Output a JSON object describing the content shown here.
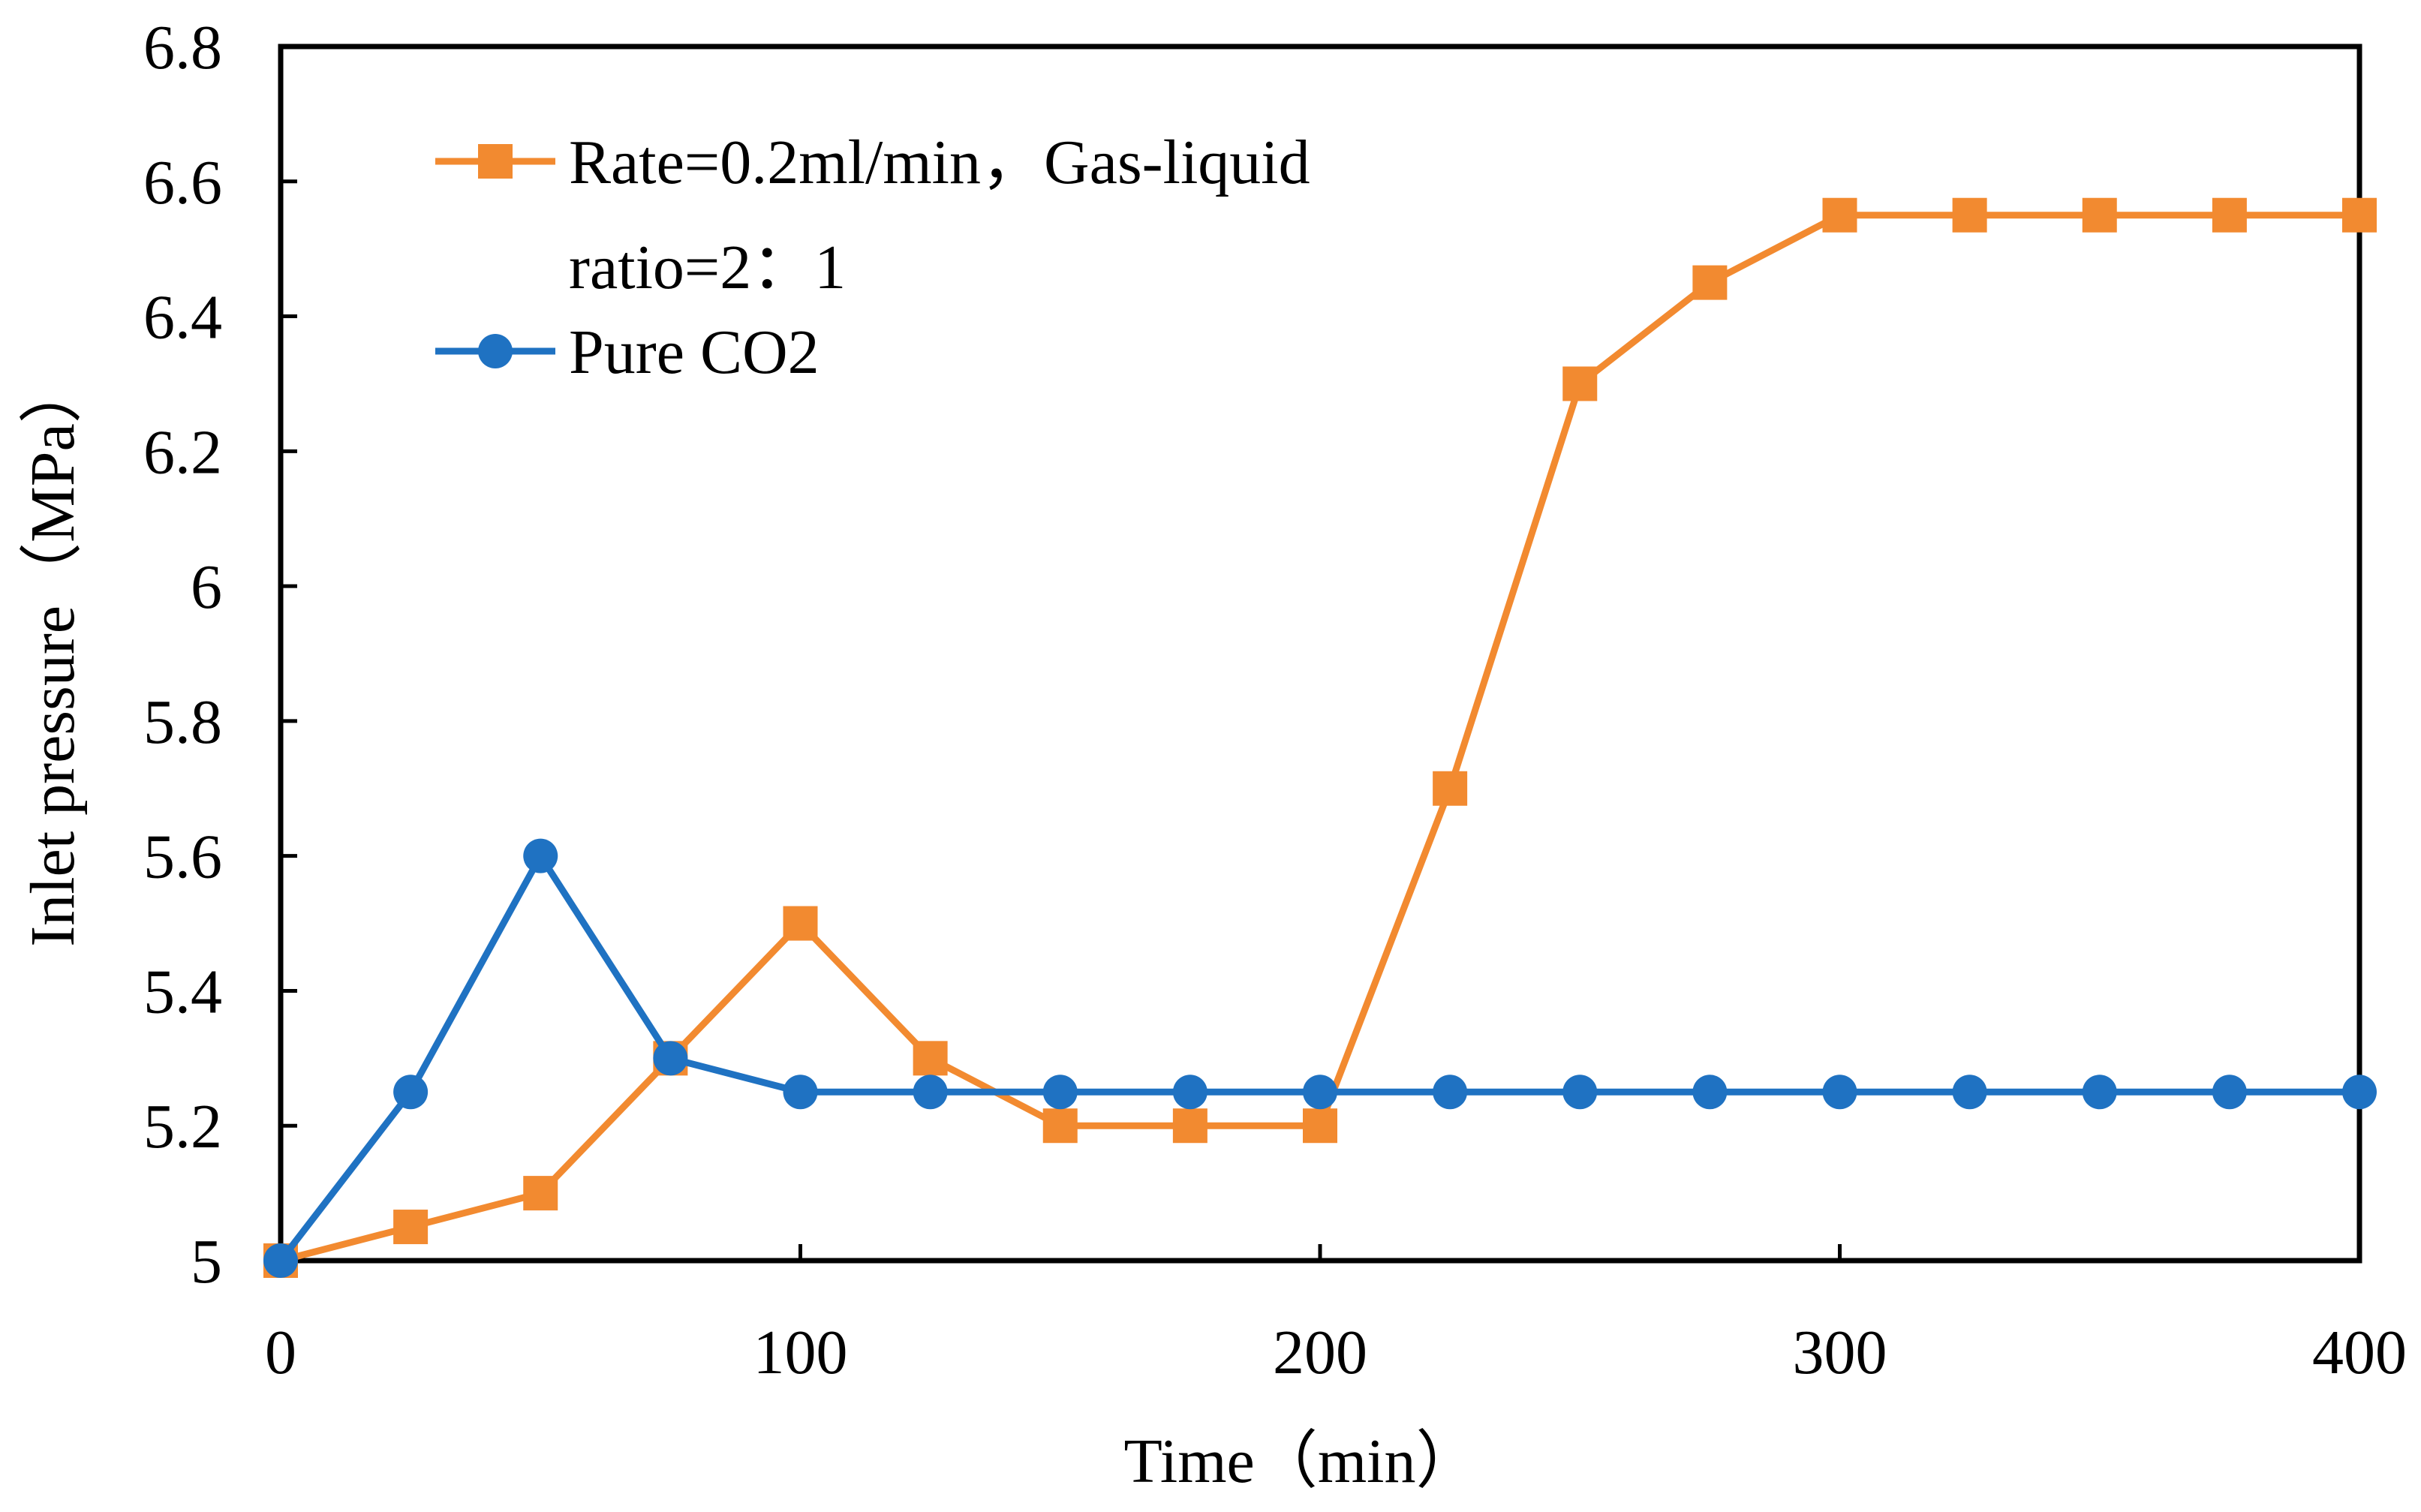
{
  "chart_data": {
    "type": "line",
    "title": "",
    "xlabel": "Time（min）",
    "ylabel": "Inlet pressure（MPa）",
    "xlim": [
      0,
      400
    ],
    "ylim": [
      5,
      6.8
    ],
    "x_ticks": [
      0,
      100,
      200,
      300,
      400
    ],
    "x_tick_labels": [
      "0",
      "100",
      "200",
      "300",
      "400"
    ],
    "y_ticks": [
      5,
      5.2,
      5.4,
      5.6,
      5.8,
      6,
      6.2,
      6.4,
      6.6,
      6.8
    ],
    "y_tick_labels": [
      "5",
      "5.2",
      "5.4",
      "5.6",
      "5.8",
      "6",
      "6.2",
      "6.4",
      "6.6",
      "6.8"
    ],
    "grid": false,
    "legend_position": "top-left",
    "series": [
      {
        "name": "Rate=0.2ml/min，Gas-liquid ratio=2：1",
        "legend_lines": [
          "Rate=0.2ml/min，Gas-liquid",
          "ratio=2：1"
        ],
        "color": "#F28A30",
        "marker": "square",
        "x": [
          0,
          25,
          50,
          75,
          100,
          125,
          150,
          175,
          200,
          225,
          250,
          275,
          300,
          325,
          350,
          375,
          400
        ],
        "values": [
          5.0,
          5.05,
          5.1,
          5.3,
          5.5,
          5.3,
          5.2,
          5.2,
          5.2,
          5.7,
          6.3,
          6.45,
          6.55,
          6.55,
          6.55,
          6.55,
          6.55
        ]
      },
      {
        "name": "Pure CO2",
        "legend_lines": [
          "Pure CO2"
        ],
        "color": "#1F72C2",
        "marker": "circle",
        "x": [
          0,
          25,
          50,
          75,
          100,
          125,
          150,
          175,
          200,
          225,
          250,
          275,
          300,
          325,
          350,
          375,
          400
        ],
        "values": [
          5.0,
          5.25,
          5.6,
          5.3,
          5.25,
          5.25,
          5.25,
          5.25,
          5.25,
          5.25,
          5.25,
          5.25,
          5.25,
          5.25,
          5.25,
          5.25,
          5.25
        ]
      }
    ]
  }
}
